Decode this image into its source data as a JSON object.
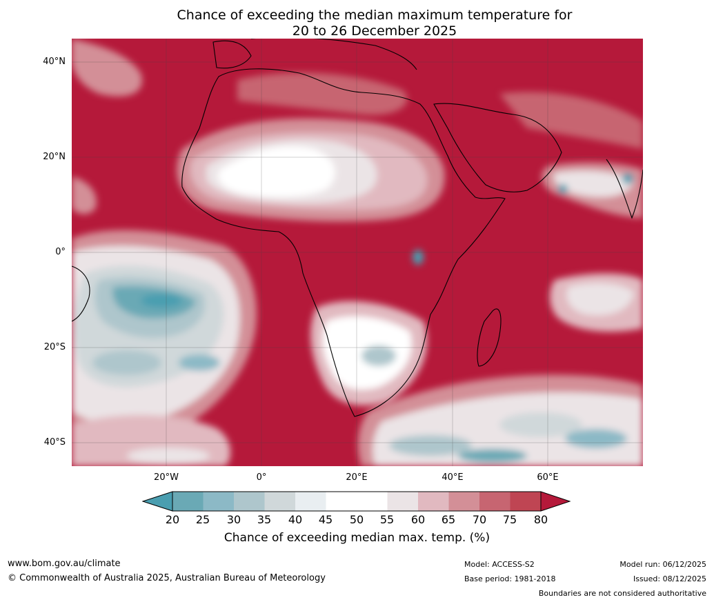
{
  "title": {
    "line1": "Chance of exceeding the median maximum temperature for",
    "line2": "20 to 26 December 2025"
  },
  "axes": {
    "lat_labels": [
      "40°N",
      "20°N",
      "0°",
      "20°S",
      "40°S"
    ],
    "lon_labels": [
      "20°W",
      "0°",
      "20°E",
      "40°E",
      "60°E"
    ]
  },
  "colorbar": {
    "ticks": [
      "20",
      "25",
      "30",
      "35",
      "40",
      "45",
      "50",
      "55",
      "60",
      "65",
      "70",
      "75",
      "80"
    ],
    "colors": [
      "#4a9eb0",
      "#6aa9b5",
      "#8cb9c6",
      "#aec6cc",
      "#d0d8da",
      "#e9eef1",
      "#ffffff",
      "#ffffff",
      "#ebe4e6",
      "#e1b9c0",
      "#d38f97",
      "#c76571",
      "#bf4553",
      "#b5193a"
    ],
    "label": "Chance of exceeding median max. temp. (%)"
  },
  "footer": {
    "url": "www.bom.gov.au/climate",
    "copyright": "© Commonwealth of Australia 2025, Australian Bureau of Meteorology",
    "model": "Model: ACCESS-S2",
    "base_period": "Base period: 1981-2018",
    "model_run": "Model run: 06/12/2025",
    "issued": "Issued: 08/12/2025",
    "disclaimer": "Boundaries are not considered authoritative"
  }
}
